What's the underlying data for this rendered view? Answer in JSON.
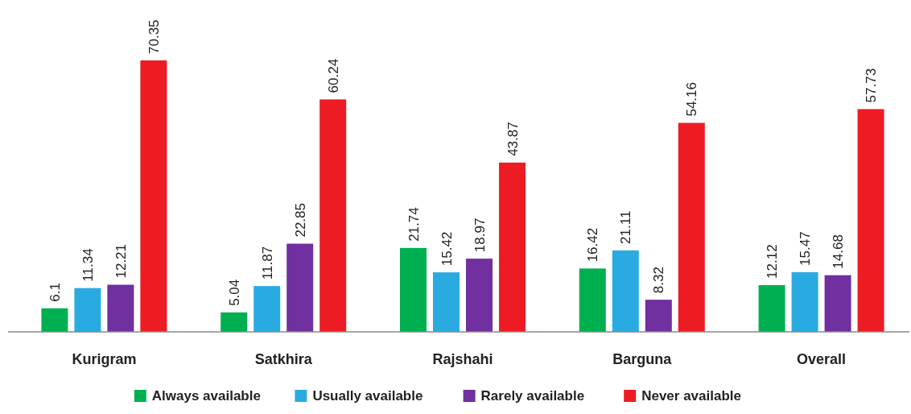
{
  "chart_data": {
    "type": "bar",
    "categories": [
      "Kurigram",
      "Satkhira",
      "Rajshahi",
      "Barguna",
      "Overall"
    ],
    "series": [
      {
        "name": "Always available",
        "color": "#00b050",
        "values": [
          6.1,
          5.04,
          21.74,
          16.42,
          12.12
        ]
      },
      {
        "name": "Usually available",
        "color": "#29abe2",
        "values": [
          11.34,
          11.87,
          15.42,
          21.11,
          15.47
        ]
      },
      {
        "name": "Rarely available",
        "color": "#7030a0",
        "values": [
          12.21,
          22.85,
          18.97,
          8.32,
          14.68
        ]
      },
      {
        "name": "Never available",
        "color": "#ed1c24",
        "values": [
          70.35,
          60.24,
          43.87,
          54.16,
          57.73
        ]
      }
    ],
    "data_labels": true,
    "legend": "bottom",
    "grid": false
  }
}
